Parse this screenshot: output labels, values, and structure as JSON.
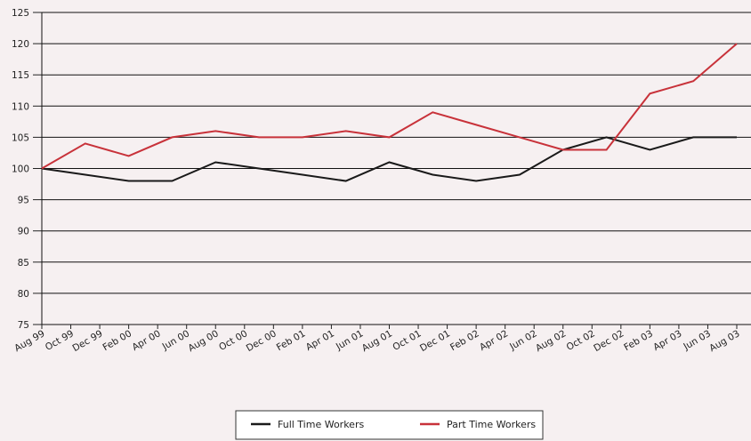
{
  "chart_data": {
    "type": "line",
    "x": [
      0,
      1.5,
      3,
      4.5,
      6,
      7.5,
      9,
      10.5,
      12,
      13.5,
      15,
      16.5,
      18,
      19.5,
      21,
      22.5,
      24
    ],
    "xlim": [
      0,
      24
    ],
    "xticks": [
      {
        "value": 0,
        "label": "Aug 99"
      },
      {
        "value": 1,
        "label": "Oct 99"
      },
      {
        "value": 2,
        "label": "Dec 99"
      },
      {
        "value": 3,
        "label": "Feb 00"
      },
      {
        "value": 4,
        "label": "Apr 00"
      },
      {
        "value": 5,
        "label": "Jun 00"
      },
      {
        "value": 6,
        "label": "Aug 00"
      },
      {
        "value": 7,
        "label": "Oct 00"
      },
      {
        "value": 8,
        "label": "Dec 00"
      },
      {
        "value": 9,
        "label": "Feb 01"
      },
      {
        "value": 10,
        "label": "Apr 01"
      },
      {
        "value": 11,
        "label": "Jun 01"
      },
      {
        "value": 12,
        "label": "Aug 01"
      },
      {
        "value": 13,
        "label": "Oct 01"
      },
      {
        "value": 14,
        "label": "Dec 01"
      },
      {
        "value": 15,
        "label": "Feb 02"
      },
      {
        "value": 16,
        "label": "Apr 02"
      },
      {
        "value": 17,
        "label": "Jun 02"
      },
      {
        "value": 18,
        "label": "Aug 02"
      },
      {
        "value": 19,
        "label": "Oct 02"
      },
      {
        "value": 20,
        "label": "Dec 02"
      },
      {
        "value": 21,
        "label": "Feb 03"
      },
      {
        "value": 22,
        "label": "Apr 03"
      },
      {
        "value": 23,
        "label": "Jun 03"
      },
      {
        "value": 24,
        "label": "Aug 03"
      }
    ],
    "ylim": [
      75,
      125
    ],
    "yticks": [
      75,
      80,
      85,
      90,
      95,
      100,
      105,
      110,
      115,
      120,
      125
    ],
    "grid": true,
    "legend": "bottom",
    "series": [
      {
        "name": "Full Time Workers",
        "color": "#1a1a1a",
        "values": [
          100,
          99,
          98,
          98,
          101,
          100,
          99,
          98,
          101,
          99,
          98,
          99,
          103,
          105,
          103,
          105,
          105
        ]
      },
      {
        "name": "Part Time Workers",
        "color": "#c8323a",
        "values": [
          100,
          104,
          102,
          105,
          106,
          105,
          105,
          106,
          105,
          109,
          107,
          105,
          103,
          103,
          112,
          114,
          120
        ]
      }
    ]
  }
}
